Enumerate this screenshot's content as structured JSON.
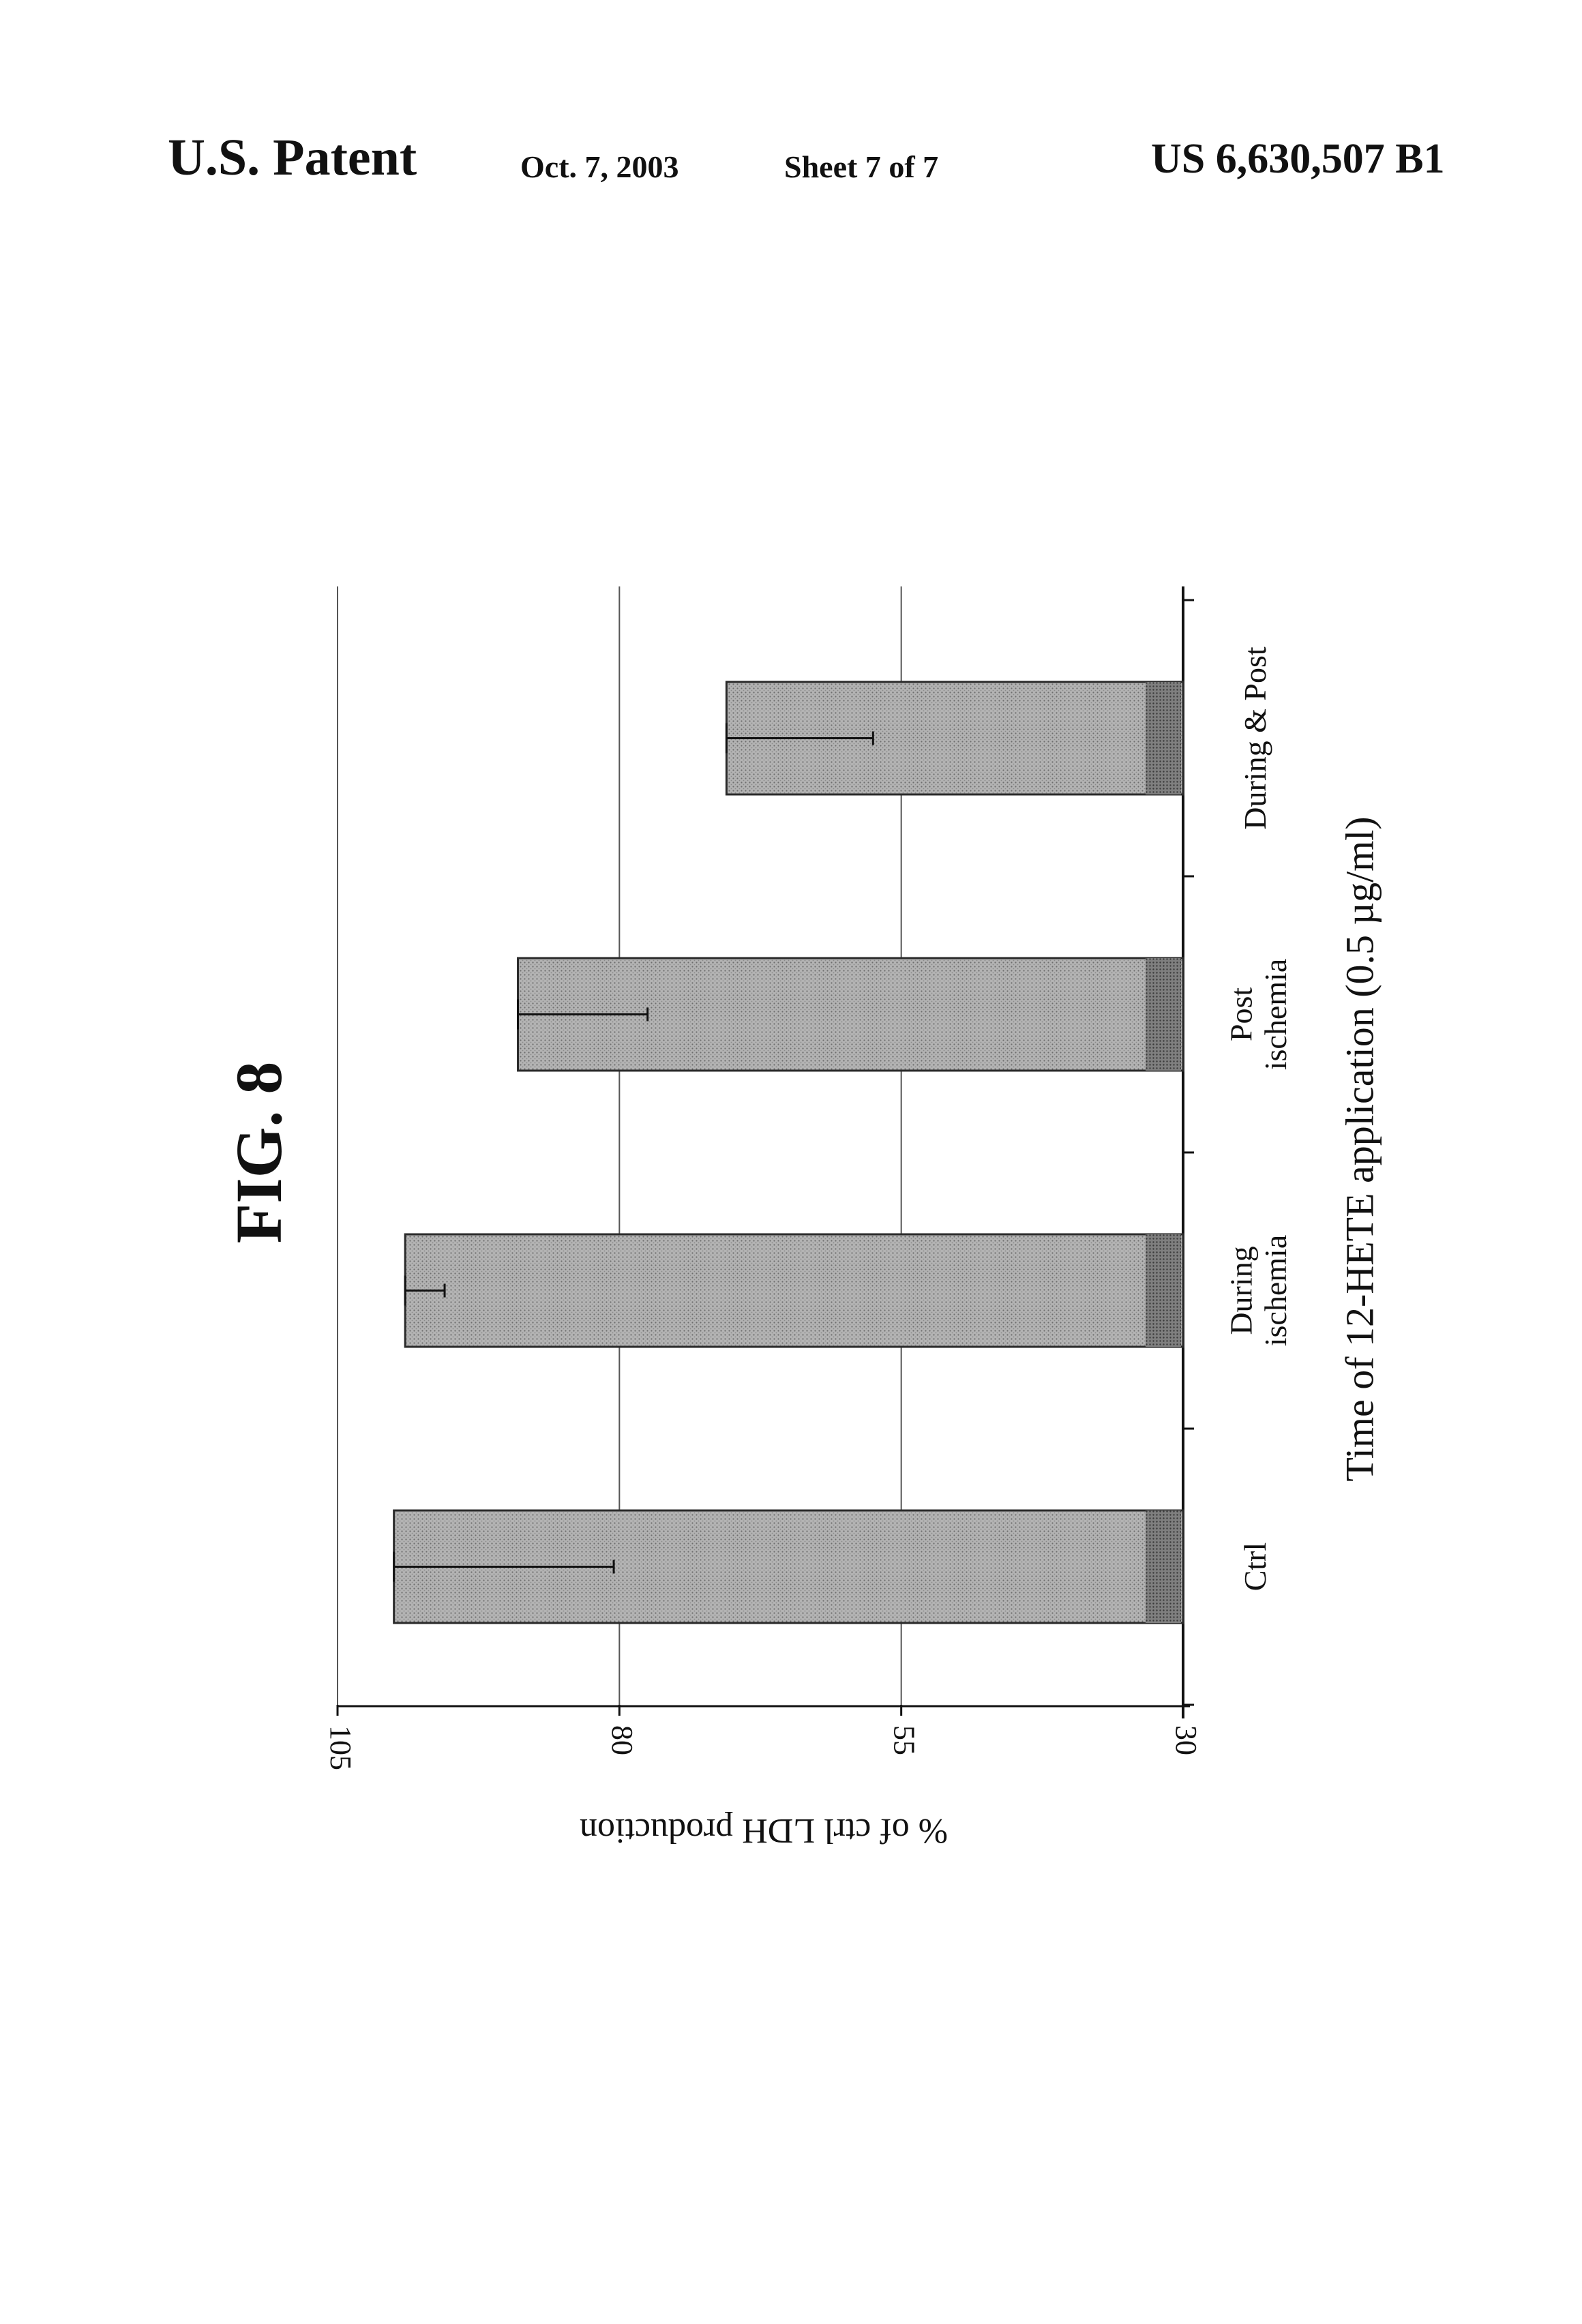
{
  "header": {
    "publisher": "U.S. Patent",
    "date": "Oct. 7, 2003",
    "sheet": "Sheet 7 of 7",
    "patent_number": "US 6,630,507 B1"
  },
  "figure": {
    "label": "FIG. 8"
  },
  "chart_data": {
    "type": "bar",
    "orientation": "rotated-90-clockwise",
    "categories": [
      "Ctrl",
      "During\nischemia",
      "Post\nischemia",
      "During & Post"
    ],
    "series": [
      {
        "values": [
          100,
          99,
          89,
          70.5
        ],
        "error_low": [
          80.5,
          95.5,
          77.5,
          57.5
        ]
      }
    ],
    "xlabel": "Time of 12-HETE application (0.5 µg/ml)",
    "ylabel": "% of ctrl LDH production",
    "ylim": [
      30,
      105
    ],
    "yticks": [
      105,
      80,
      55,
      30
    ],
    "grid": true,
    "legend": "none",
    "colors": {
      "bar": "#a9a9a9",
      "bar_edge": "#2a2a2a",
      "grid": "#555555"
    }
  }
}
